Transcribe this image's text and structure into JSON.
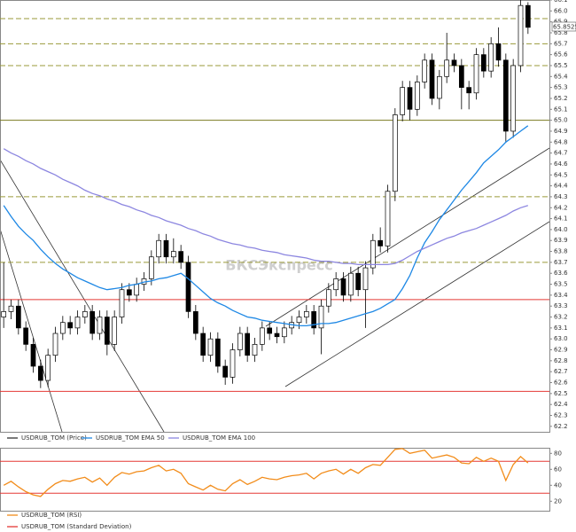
{
  "chart_data": [
    {
      "type": "candlestick",
      "name": "USDRUB_TOM (Price)",
      "watermark": "БКСЭкспресс",
      "last_price_label": "65.8525",
      "up_color": "#ffffff",
      "down_color": "#000000",
      "outline_color": "#000000",
      "open": [
        63.2,
        63.25,
        63.3,
        63.1,
        62.95,
        62.75,
        62.62,
        62.85,
        63.05,
        63.15,
        63.1,
        63.2,
        63.25,
        63.05,
        63.2,
        62.95,
        63.2,
        63.45,
        63.4,
        63.5,
        63.55,
        63.75,
        63.9,
        63.75,
        63.8,
        63.7,
        63.25,
        63.05,
        62.85,
        63.0,
        62.75,
        62.65,
        62.9,
        63.05,
        62.85,
        62.95,
        63.1,
        63.05,
        63.02,
        63.1,
        63.15,
        63.2,
        63.25,
        63.1,
        63.3,
        63.45,
        63.55,
        63.4,
        63.6,
        63.45,
        63.65,
        63.9,
        63.85,
        64.35,
        65.05,
        65.3,
        65.1,
        65.35,
        65.55,
        65.2,
        65.4,
        65.55,
        65.5,
        65.3,
        65.25,
        65.6,
        65.45,
        65.7,
        65.55,
        64.9,
        65.5,
        66.05
      ],
      "high": [
        63.7,
        63.36,
        63.36,
        63.16,
        63.01,
        62.81,
        62.91,
        63.11,
        63.21,
        63.21,
        63.26,
        63.31,
        63.31,
        63.26,
        63.26,
        63.26,
        63.51,
        63.51,
        63.56,
        63.61,
        63.81,
        63.96,
        63.96,
        63.92,
        63.86,
        63.76,
        63.31,
        63.11,
        63.06,
        63.06,
        62.81,
        62.96,
        63.11,
        63.11,
        63.01,
        63.16,
        63.16,
        63.11,
        63.16,
        63.21,
        63.26,
        63.31,
        63.31,
        63.36,
        63.51,
        63.61,
        63.61,
        63.66,
        63.66,
        63.71,
        63.96,
        64.02,
        64.41,
        65.11,
        65.36,
        65.36,
        65.41,
        65.61,
        65.61,
        65.46,
        65.8,
        65.61,
        65.56,
        65.36,
        65.66,
        65.66,
        65.76,
        65.85,
        65.61,
        65.56,
        66.1,
        66.08
      ],
      "low": [
        63.1,
        63.18,
        63.04,
        62.89,
        62.69,
        62.55,
        62.56,
        62.79,
        62.99,
        63.04,
        63.04,
        63.14,
        62.99,
        62.99,
        62.85,
        62.89,
        63.14,
        63.34,
        63.34,
        63.44,
        63.49,
        63.69,
        63.69,
        63.69,
        63.64,
        63.19,
        62.99,
        62.79,
        62.79,
        62.69,
        62.58,
        62.59,
        62.84,
        62.79,
        62.79,
        62.89,
        62.99,
        62.96,
        62.96,
        63.04,
        63.09,
        63.14,
        63.04,
        62.86,
        63.24,
        63.39,
        63.34,
        63.34,
        63.39,
        63.1,
        63.59,
        63.79,
        63.79,
        64.26,
        64.99,
        65.0,
        65.04,
        65.29,
        65.14,
        65.1,
        65.34,
        65.44,
        65.1,
        65.1,
        65.19,
        65.39,
        65.39,
        65.49,
        64.8,
        64.84,
        65.44,
        65.79
      ],
      "close": [
        63.25,
        63.3,
        63.1,
        62.95,
        62.75,
        62.62,
        62.85,
        63.05,
        63.15,
        63.1,
        63.2,
        63.25,
        63.05,
        63.2,
        62.95,
        63.2,
        63.45,
        63.4,
        63.5,
        63.55,
        63.75,
        63.9,
        63.75,
        63.8,
        63.7,
        63.25,
        63.05,
        62.85,
        63.0,
        62.75,
        62.65,
        62.9,
        63.05,
        62.85,
        62.95,
        63.1,
        63.05,
        63.02,
        63.1,
        63.15,
        63.2,
        63.25,
        63.1,
        63.3,
        63.45,
        63.55,
        63.4,
        63.6,
        63.45,
        63.65,
        63.9,
        63.85,
        64.35,
        65.05,
        65.3,
        65.1,
        65.35,
        65.55,
        65.2,
        65.4,
        65.55,
        65.5,
        65.3,
        65.25,
        65.6,
        65.45,
        65.7,
        65.55,
        64.9,
        65.5,
        66.05,
        65.85
      ],
      "series": [
        {
          "name": "USDRUB_TOM EMA 50",
          "color": "#1e88e5",
          "values": [
            64.22,
            64.12,
            64.03,
            63.96,
            63.9,
            63.82,
            63.75,
            63.69,
            63.64,
            63.6,
            63.56,
            63.53,
            63.5,
            63.47,
            63.45,
            63.46,
            63.47,
            63.49,
            63.5,
            63.52,
            63.53,
            63.55,
            63.56,
            63.58,
            63.6,
            63.55,
            63.49,
            63.43,
            63.37,
            63.33,
            63.3,
            63.26,
            63.23,
            63.2,
            63.19,
            63.17,
            63.16,
            63.15,
            63.14,
            63.13,
            63.12,
            63.12,
            63.13,
            63.14,
            63.14,
            63.15,
            63.17,
            63.19,
            63.21,
            63.23,
            63.25,
            63.28,
            63.32,
            63.36,
            63.46,
            63.58,
            63.74,
            63.88,
            63.98,
            64.09,
            64.18,
            64.27,
            64.36,
            64.44,
            64.52,
            64.61,
            64.67,
            64.73,
            64.8,
            64.85,
            64.9,
            64.95
          ]
        },
        {
          "name": "USDRUB_TOM EMA 100",
          "color": "#8c86e0",
          "values": [
            64.74,
            64.7,
            64.67,
            64.63,
            64.6,
            64.56,
            64.53,
            64.5,
            64.46,
            64.43,
            64.4,
            64.36,
            64.33,
            64.31,
            64.28,
            64.26,
            64.23,
            64.21,
            64.18,
            64.16,
            64.13,
            64.11,
            64.08,
            64.06,
            64.04,
            64.01,
            63.99,
            63.96,
            63.94,
            63.91,
            63.89,
            63.87,
            63.86,
            63.84,
            63.83,
            63.81,
            63.8,
            63.79,
            63.77,
            63.76,
            63.75,
            63.74,
            63.72,
            63.71,
            63.71,
            63.7,
            63.69,
            63.69,
            63.68,
            63.68,
            63.68,
            63.68,
            63.68,
            63.69,
            63.72,
            63.76,
            63.8,
            63.83,
            63.86,
            63.89,
            63.92,
            63.94,
            63.97,
            63.99,
            64.01,
            64.04,
            64.07,
            64.1,
            64.13,
            64.17,
            64.2,
            64.22
          ]
        }
      ],
      "levels": [
        {
          "value": 65.93,
          "color": "#9a9a3a",
          "dashed": true
        },
        {
          "value": 65.7,
          "color": "#9a9a3a",
          "dashed": true
        },
        {
          "value": 65.5,
          "color": "#9a9a3a",
          "dashed": true
        },
        {
          "value": 65.0,
          "color": "#7a7a20",
          "dashed": false
        },
        {
          "value": 64.3,
          "color": "#9a9a3a",
          "dashed": true
        },
        {
          "value": 63.7,
          "color": "#9a9a3a",
          "dashed": true
        },
        {
          "value": 63.36,
          "color": "#e53935",
          "dashed": false
        },
        {
          "value": 62.52,
          "color": "#e53935",
          "dashed": false
        }
      ],
      "ylim": [
        62.15,
        66.1
      ],
      "yticks": [
        66.1,
        {
          "value": 66,
          "label": "66.0"
        },
        65.9,
        65.8,
        65.7,
        65.6,
        65.5,
        65.4,
        65.3,
        65.2,
        65.1,
        {
          "value": 65,
          "label": "65.0"
        },
        64.9,
        64.8,
        64.7,
        64.6,
        64.5,
        64.4,
        64.3,
        64.2,
        64.1,
        {
          "value": 64,
          "label": "64.0"
        },
        63.9,
        63.8,
        63.7,
        63.6,
        63.5,
        63.4,
        63.3,
        63.2,
        63.1,
        {
          "value": 63,
          "label": "63.0"
        },
        62.9,
        62.8,
        62.7,
        62.6,
        62.5,
        62.4,
        62.3,
        62.2
      ],
      "legend_color": "#333333"
    },
    {
      "type": "line",
      "series": [
        {
          "name": "USDRUB_TOM (RSI)",
          "color": "#f28c1a",
          "values": [
            40,
            45,
            38,
            32,
            28,
            26,
            35,
            42,
            46,
            45,
            48,
            50,
            44,
            49,
            40,
            50,
            56,
            54,
            57,
            58,
            62,
            65,
            58,
            60,
            55,
            42,
            38,
            34,
            40,
            35,
            33,
            42,
            47,
            41,
            45,
            50,
            48,
            47,
            50,
            52,
            53,
            55,
            48,
            55,
            58,
            60,
            54,
            60,
            55,
            62,
            66,
            65,
            75,
            85,
            86,
            80,
            82,
            84,
            74,
            76,
            78,
            75,
            68,
            67,
            75,
            70,
            74,
            70,
            46,
            66,
            76,
            68
          ]
        },
        {
          "name": "USDRUB_TOM (Standard Deviation)",
          "color": "#e53935"
        }
      ],
      "levels": [
        {
          "value": 70,
          "color": "#e53935",
          "dashed": false
        },
        {
          "value": 30,
          "color": "#e53935",
          "dashed": false
        }
      ],
      "ylim": [
        7,
        87
      ],
      "yticks": [
        80,
        60,
        40,
        20
      ]
    }
  ]
}
